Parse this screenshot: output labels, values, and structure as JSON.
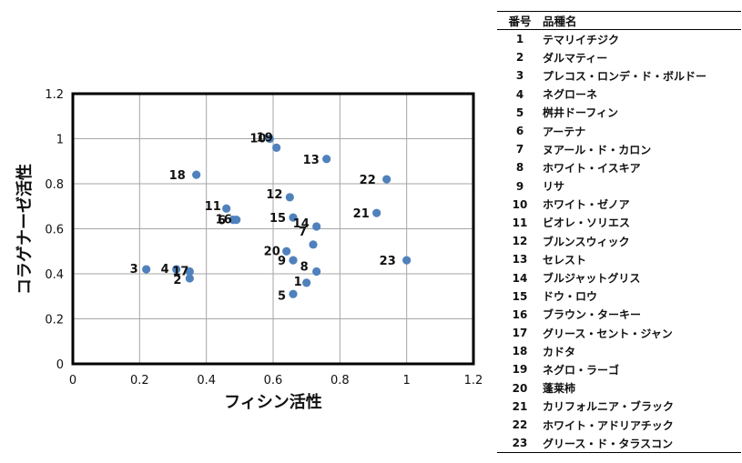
{
  "colors": {
    "point": "#4f81bd",
    "grid": "#a6a6a6",
    "border": "#000000",
    "text": "#111111"
  },
  "chart_data": {
    "type": "scatter",
    "title": "",
    "xlabel": "フィシン活性",
    "ylabel": "コラゲナーゼ活性",
    "xlim": [
      0,
      1.2
    ],
    "ylim": [
      0,
      1.2
    ],
    "x_ticks": [
      "0",
      "0.2",
      "0.4",
      "0.6",
      "0.8",
      "1",
      "1.2"
    ],
    "y_ticks": [
      "0",
      "0.2",
      "0.4",
      "0.6",
      "0.8",
      "1",
      "1.2"
    ],
    "grid": true,
    "points": [
      {
        "label": "1",
        "x": 0.7,
        "y": 0.36
      },
      {
        "label": "2",
        "x": 0.35,
        "y": 0.38
      },
      {
        "label": "3",
        "x": 0.22,
        "y": 0.42
      },
      {
        "label": "4",
        "x": 0.31,
        "y": 0.42
      },
      {
        "label": "5",
        "x": 0.66,
        "y": 0.31
      },
      {
        "label": "6",
        "x": 0.48,
        "y": 0.64
      },
      {
        "label": "7",
        "x": 0.72,
        "y": 0.53
      },
      {
        "label": "8",
        "x": 0.73,
        "y": 0.41
      },
      {
        "label": "9",
        "x": 0.66,
        "y": 0.46
      },
      {
        "label": "10",
        "x": 0.59,
        "y": 1.0
      },
      {
        "label": "11",
        "x": 0.46,
        "y": 0.69
      },
      {
        "label": "12",
        "x": 0.65,
        "y": 0.74
      },
      {
        "label": "13",
        "x": 0.76,
        "y": 0.91
      },
      {
        "label": "14",
        "x": 0.73,
        "y": 0.61
      },
      {
        "label": "15",
        "x": 0.66,
        "y": 0.65
      },
      {
        "label": "16",
        "x": 0.49,
        "y": 0.64
      },
      {
        "label": "17",
        "x": 0.35,
        "y": 0.41
      },
      {
        "label": "18",
        "x": 0.37,
        "y": 0.84
      },
      {
        "label": "19",
        "x": 0.61,
        "y": 0.96
      },
      {
        "label": "20",
        "x": 0.64,
        "y": 0.5
      },
      {
        "label": "21",
        "x": 0.91,
        "y": 0.67
      },
      {
        "label": "22",
        "x": 0.94,
        "y": 0.82
      },
      {
        "label": "23",
        "x": 1.0,
        "y": 0.46
      }
    ]
  },
  "legend_table": {
    "headers": [
      "番号",
      "品種名"
    ],
    "rows": [
      [
        "1",
        "テマリイチジク"
      ],
      [
        "2",
        "ダルマティー"
      ],
      [
        "3",
        "プレコス・ロンデ・ド・ボルドー"
      ],
      [
        "4",
        "ネグローネ"
      ],
      [
        "5",
        "桝井ドーフィン"
      ],
      [
        "6",
        "アーテナ"
      ],
      [
        "7",
        "ヌアール・ド・カロン"
      ],
      [
        "8",
        "ホワイト・イスキア"
      ],
      [
        "9",
        "リサ"
      ],
      [
        "10",
        "ホワイト・ゼノア"
      ],
      [
        "11",
        "ビオレ・ソリエス"
      ],
      [
        "12",
        "ブルンスウィック"
      ],
      [
        "13",
        "セレスト"
      ],
      [
        "14",
        "ブルジャットグリス"
      ],
      [
        "15",
        "ドウ・ロウ"
      ],
      [
        "16",
        "ブラウン・ターキー"
      ],
      [
        "17",
        "グリース・セント・ジャン"
      ],
      [
        "18",
        "カドタ"
      ],
      [
        "19",
        "ネグロ・ラーゴ"
      ],
      [
        "20",
        "蓬莱柿"
      ],
      [
        "21",
        "カリフォルニア・ブラック"
      ],
      [
        "22",
        "ホワイト・アドリアチック"
      ],
      [
        "23",
        "グリース・ド・タラスコン"
      ]
    ]
  }
}
